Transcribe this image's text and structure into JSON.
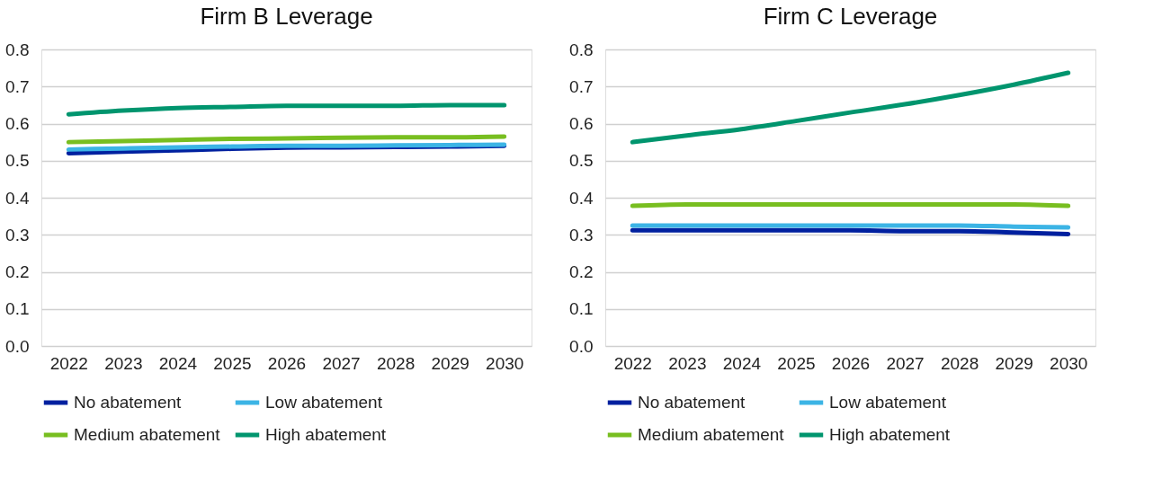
{
  "chart_data": [
    {
      "type": "line",
      "title": "Firm B Leverage",
      "categories": [
        "2022",
        "2023",
        "2024",
        "2025",
        "2026",
        "2027",
        "2028",
        "2029",
        "2030"
      ],
      "ylim": [
        0,
        0.8
      ],
      "yticks": [
        {
          "value": 0,
          "label": "0.0"
        },
        0.1,
        0.2,
        0.3,
        0.4,
        0.5,
        0.6,
        0.7,
        0.8
      ],
      "grid": "y",
      "legend": "bottom",
      "marker": "none",
      "line_style": "solid",
      "series": [
        {
          "name": "No abatement",
          "color": "#00209f",
          "values": [
            0.52,
            0.524,
            0.528,
            0.532,
            0.535,
            0.536,
            0.537,
            0.538,
            0.54
          ]
        },
        {
          "name": "Low abatement",
          "color": "#3cb4e5",
          "values": [
            0.53,
            0.533,
            0.536,
            0.538,
            0.54,
            0.54,
            0.541,
            0.542,
            0.543
          ]
        },
        {
          "name": "Medium abatement",
          "color": "#78be20",
          "values": [
            0.55,
            0.553,
            0.556,
            0.559,
            0.56,
            0.562,
            0.563,
            0.563,
            0.565
          ]
        },
        {
          "name": "High abatement",
          "color": "#00956e",
          "values": [
            0.625,
            0.635,
            0.642,
            0.645,
            0.648,
            0.648,
            0.648,
            0.65,
            0.65
          ]
        }
      ]
    },
    {
      "type": "line",
      "title": "Firm C Leverage",
      "categories": [
        "2022",
        "2023",
        "2024",
        "2025",
        "2026",
        "2027",
        "2028",
        "2029",
        "2030"
      ],
      "ylim": [
        0,
        0.8
      ],
      "yticks": [
        {
          "value": 0,
          "label": "0.0"
        },
        0.1,
        0.2,
        0.3,
        0.4,
        0.5,
        0.6,
        0.7,
        0.8
      ],
      "grid": "y",
      "legend": "bottom",
      "marker": "none",
      "line_style": "solid",
      "series": [
        {
          "name": "No abatement",
          "color": "#00209f",
          "values": [
            0.312,
            0.312,
            0.312,
            0.312,
            0.312,
            0.31,
            0.31,
            0.306,
            0.302
          ]
        },
        {
          "name": "Low abatement",
          "color": "#3cb4e5",
          "values": [
            0.325,
            0.325,
            0.325,
            0.325,
            0.325,
            0.325,
            0.325,
            0.322,
            0.32
          ]
        },
        {
          "name": "Medium abatement",
          "color": "#78be20",
          "values": [
            0.378,
            0.382,
            0.382,
            0.382,
            0.382,
            0.382,
            0.382,
            0.382,
            0.378
          ]
        },
        {
          "name": "High abatement",
          "color": "#00956e",
          "values": [
            0.55,
            0.568,
            0.585,
            0.607,
            0.63,
            0.652,
            0.677,
            0.705,
            0.737
          ]
        }
      ]
    }
  ]
}
